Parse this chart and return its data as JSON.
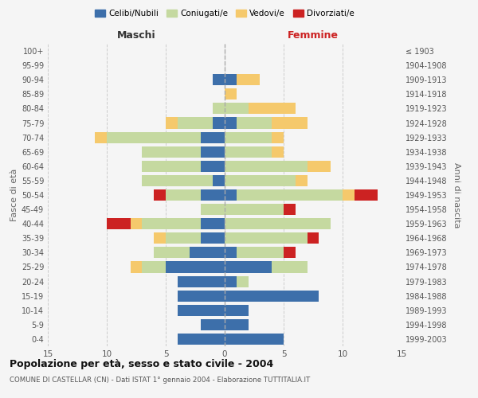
{
  "age_groups": [
    "100+",
    "95-99",
    "90-94",
    "85-89",
    "80-84",
    "75-79",
    "70-74",
    "65-69",
    "60-64",
    "55-59",
    "50-54",
    "45-49",
    "40-44",
    "35-39",
    "30-34",
    "25-29",
    "20-24",
    "15-19",
    "10-14",
    "5-9",
    "0-4"
  ],
  "birth_years": [
    "≤ 1903",
    "1904-1908",
    "1909-1913",
    "1914-1918",
    "1919-1923",
    "1924-1928",
    "1929-1933",
    "1934-1938",
    "1939-1943",
    "1944-1948",
    "1949-1953",
    "1954-1958",
    "1959-1963",
    "1964-1968",
    "1969-1973",
    "1974-1978",
    "1979-1983",
    "1984-1988",
    "1989-1993",
    "1994-1998",
    "1999-2003"
  ],
  "colors": {
    "celibi": "#3d6faa",
    "coniugati": "#c5d9a0",
    "vedovi": "#f5c96c",
    "divorziati": "#cc2222"
  },
  "males": {
    "celibi": [
      0,
      0,
      1,
      0,
      0,
      1,
      2,
      2,
      2,
      1,
      2,
      0,
      2,
      2,
      3,
      5,
      4,
      4,
      4,
      2,
      4
    ],
    "coniugati": [
      0,
      0,
      0,
      0,
      1,
      3,
      8,
      5,
      5,
      6,
      3,
      2,
      5,
      3,
      3,
      2,
      0,
      0,
      0,
      0,
      0
    ],
    "vedovi": [
      0,
      0,
      0,
      0,
      0,
      1,
      1,
      0,
      0,
      0,
      0,
      0,
      1,
      1,
      0,
      1,
      0,
      0,
      0,
      0,
      0
    ],
    "divorziati": [
      0,
      0,
      0,
      0,
      0,
      0,
      0,
      0,
      0,
      0,
      1,
      0,
      2,
      0,
      0,
      0,
      0,
      0,
      0,
      0,
      0
    ]
  },
  "females": {
    "celibi": [
      0,
      0,
      1,
      0,
      0,
      1,
      0,
      0,
      0,
      0,
      1,
      0,
      0,
      0,
      1,
      4,
      1,
      8,
      2,
      2,
      5
    ],
    "coniugati": [
      0,
      0,
      0,
      0,
      2,
      3,
      4,
      4,
      7,
      6,
      9,
      5,
      9,
      7,
      4,
      3,
      1,
      0,
      0,
      0,
      0
    ],
    "vedovi": [
      0,
      0,
      2,
      1,
      4,
      3,
      1,
      1,
      2,
      1,
      1,
      0,
      0,
      0,
      0,
      0,
      0,
      0,
      0,
      0,
      0
    ],
    "divorziati": [
      0,
      0,
      0,
      0,
      0,
      0,
      0,
      0,
      0,
      0,
      2,
      1,
      0,
      1,
      1,
      0,
      0,
      0,
      0,
      0,
      0
    ]
  },
  "title": "Popolazione per età, sesso e stato civile - 2004",
  "subtitle": "COMUNE DI CASTELLAR (CN) - Dati ISTAT 1° gennaio 2004 - Elaborazione TUTTITALIA.IT",
  "xlabel_left": "Maschi",
  "xlabel_right": "Femmine",
  "ylabel_left": "Fasce di età",
  "ylabel_right": "Anni di nascita",
  "xlim": 15,
  "background_color": "#f5f5f5",
  "grid_color": "#cccccc",
  "legend_labels": [
    "Celibi/Nubili",
    "Coniugati/e",
    "Vedovi/e",
    "Divorziati/e"
  ]
}
